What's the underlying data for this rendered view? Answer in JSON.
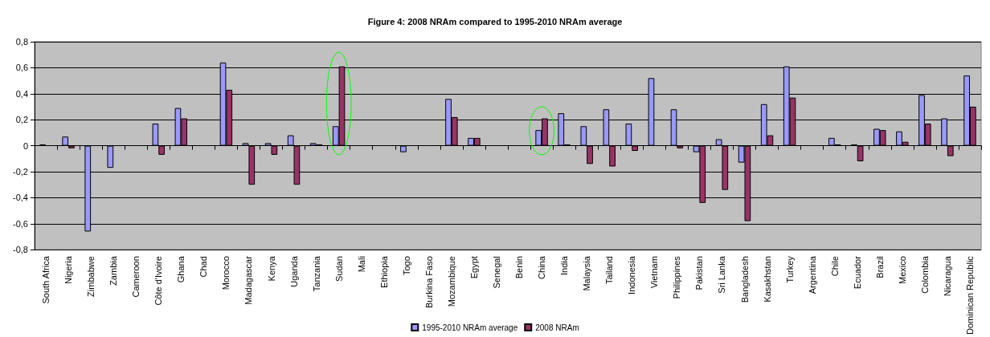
{
  "chart_data": {
    "type": "bar",
    "title": "Figure 4: 2008 NRAm compared to 1995-2010 NRAm average",
    "categories": [
      "South Africa",
      "Nigeria",
      "Zimbabwe",
      "Zambia",
      "Cameroon",
      "Côte d'Ivoire",
      "Ghana",
      "Chad",
      "Morocco",
      "Madagascar",
      "Kenya",
      "Uganda",
      "Tanzania",
      "Sudan",
      "Mali",
      "Ethiopia",
      "Togo",
      "Burkina Faso",
      "Mozambique",
      "Egypt",
      "Senegal",
      "Benin",
      "China",
      "India",
      "Malaysia",
      "Tailand",
      "Indonesia",
      "Vietnam",
      "Philippines",
      "Pakistan",
      "Sri Lanka",
      "Bangladesh",
      "Kasakhstan",
      "Turkey",
      "Argentina",
      "Chile",
      "Ecuador",
      "Brazil",
      "Mexico",
      "Colombia",
      "Nicaragua",
      "Dominican Republic"
    ],
    "series": [
      {
        "name": "1995-2010 NRAm average",
        "color": "#9999ff",
        "values": [
          0.01,
          0.07,
          -0.66,
          -0.17,
          null,
          0.17,
          0.29,
          null,
          0.64,
          0.02,
          0.02,
          0.08,
          0.02,
          0.15,
          null,
          null,
          -0.05,
          null,
          0.36,
          0.06,
          null,
          null,
          0.12,
          0.25,
          0.15,
          0.28,
          0.17,
          0.52,
          0.28,
          -0.05,
          0.05,
          -0.13,
          0.32,
          0.61,
          null,
          0.06,
          0.01,
          0.13,
          0.11,
          0.39,
          0.21,
          0.54
        ]
      },
      {
        "name": "2008 NRAm",
        "color": "#993366",
        "values": [
          null,
          -0.02,
          null,
          null,
          null,
          -0.07,
          0.21,
          null,
          0.43,
          -0.3,
          -0.07,
          -0.3,
          0.01,
          0.61,
          null,
          null,
          null,
          null,
          0.22,
          0.06,
          null,
          null,
          0.21,
          0.01,
          -0.14,
          -0.16,
          -0.04,
          null,
          -0.02,
          -0.44,
          -0.34,
          -0.58,
          0.08,
          0.37,
          null,
          0.01,
          -0.12,
          0.12,
          0.03,
          0.17,
          -0.08,
          0.3
        ]
      }
    ],
    "ylim": [
      -0.8,
      0.8
    ],
    "yticks": [
      {
        "value": -0.8,
        "label": "-0,8"
      },
      {
        "value": -0.6,
        "label": "-0,6"
      },
      {
        "value": -0.4,
        "label": "-0,4"
      },
      {
        "value": -0.2,
        "label": "-0,2"
      },
      0,
      {
        "value": 0.2,
        "label": "0,2"
      },
      {
        "value": 0.4,
        "label": "0,4"
      },
      {
        "value": 0.6,
        "label": "0,6"
      },
      {
        "value": 0.8,
        "label": "0,8"
      }
    ],
    "grid": "y",
    "legend": "bottom"
  }
}
